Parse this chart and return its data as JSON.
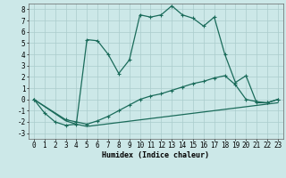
{
  "xlabel": "Humidex (Indice chaleur)",
  "xlim": [
    -0.5,
    23.5
  ],
  "ylim": [
    -3.5,
    8.5
  ],
  "xticks": [
    0,
    1,
    2,
    3,
    4,
    5,
    6,
    7,
    8,
    9,
    10,
    11,
    12,
    13,
    14,
    15,
    16,
    17,
    18,
    19,
    20,
    21,
    22,
    23
  ],
  "yticks": [
    -3,
    -2,
    -1,
    0,
    1,
    2,
    3,
    4,
    5,
    6,
    7,
    8
  ],
  "bg_color": "#cce8e8",
  "grid_color": "#aacccc",
  "line_color": "#1a6b5a",
  "series1_x": [
    0,
    1,
    2,
    3,
    4,
    5,
    6,
    7,
    8,
    9,
    10,
    11,
    12,
    13,
    14,
    15,
    16,
    17,
    18,
    19,
    20,
    21,
    22,
    23
  ],
  "series1_y": [
    0,
    -1.2,
    -2.0,
    -2.3,
    -2.2,
    5.3,
    5.2,
    4.0,
    2.3,
    3.5,
    7.5,
    7.3,
    7.5,
    8.3,
    7.5,
    7.2,
    6.5,
    7.3,
    4.0,
    1.5,
    2.1,
    -0.3,
    -0.3,
    0.0
  ],
  "series2_x": [
    0,
    3,
    4,
    5,
    6,
    7,
    8,
    9,
    10,
    11,
    12,
    13,
    14,
    15,
    16,
    17,
    18,
    19,
    20,
    21,
    22,
    23
  ],
  "series2_y": [
    0,
    -1.8,
    -2.0,
    -2.2,
    -1.9,
    -1.5,
    -1.0,
    -0.5,
    0.0,
    0.3,
    0.5,
    0.8,
    1.1,
    1.4,
    1.6,
    1.9,
    2.1,
    1.3,
    0.0,
    -0.2,
    -0.3,
    0.0
  ],
  "series3_x": [
    0,
    3,
    4,
    5,
    23
  ],
  "series3_y": [
    0,
    -1.9,
    -2.2,
    -2.4,
    -0.3
  ],
  "tick_fontsize": 5.5,
  "xlabel_fontsize": 6.0
}
